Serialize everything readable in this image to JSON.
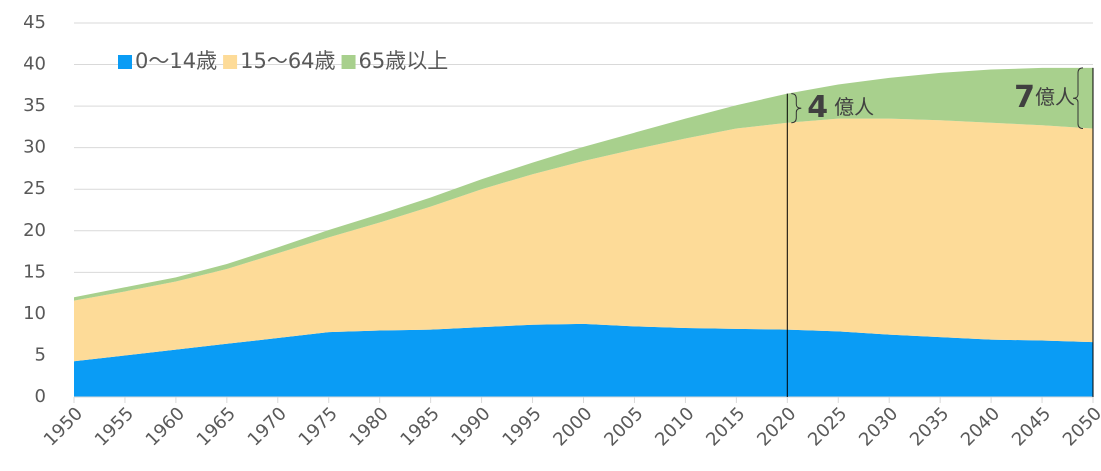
{
  "chart_data": {
    "type": "stacked_area",
    "x": [
      1950,
      1955,
      1960,
      1965,
      1970,
      1975,
      1980,
      1985,
      1990,
      1995,
      2000,
      2005,
      2010,
      2015,
      2020,
      2025,
      2030,
      2035,
      2040,
      2045,
      2050
    ],
    "series": [
      {
        "name": "0～14歳",
        "color": "#0a9cf5",
        "values": [
          4.3,
          5.0,
          5.7,
          6.4,
          7.1,
          7.8,
          8.0,
          8.1,
          8.4,
          8.7,
          8.8,
          8.5,
          8.3,
          8.2,
          8.1,
          7.9,
          7.5,
          7.2,
          6.9,
          6.8,
          6.6
        ]
      },
      {
        "name": "15～64歳",
        "color": "#fddb98",
        "values": [
          7.3,
          7.7,
          8.2,
          9.0,
          10.2,
          11.4,
          13.0,
          14.8,
          16.6,
          18.1,
          19.6,
          21.3,
          22.8,
          24.1,
          24.9,
          25.6,
          26.0,
          26.1,
          26.1,
          25.9,
          25.7
        ]
      },
      {
        "name": "65歳以上",
        "color": "#a8d08d",
        "values": [
          0.4,
          0.5,
          0.5,
          0.6,
          0.7,
          0.9,
          1.0,
          1.1,
          1.2,
          1.4,
          1.7,
          2.0,
          2.4,
          2.8,
          3.5,
          4.1,
          4.9,
          5.7,
          6.4,
          6.9,
          7.3
        ]
      }
    ],
    "xlim": [
      1950,
      2050
    ],
    "xticks": [
      1950,
      1955,
      1960,
      1965,
      1970,
      1975,
      1980,
      1985,
      1990,
      1995,
      2000,
      2005,
      2010,
      2015,
      2020,
      2025,
      2030,
      2035,
      2040,
      2045,
      2050
    ],
    "ylim": [
      0,
      45
    ],
    "yticks": [
      0,
      5,
      10,
      15,
      20,
      25,
      30,
      35,
      40,
      45
    ],
    "grid": true,
    "legend": "top-left",
    "annotations": [
      {
        "x": 2020,
        "number": "4",
        "unit": "億人"
      },
      {
        "x": 2050,
        "number": "7",
        "unit": "億人"
      }
    ]
  }
}
